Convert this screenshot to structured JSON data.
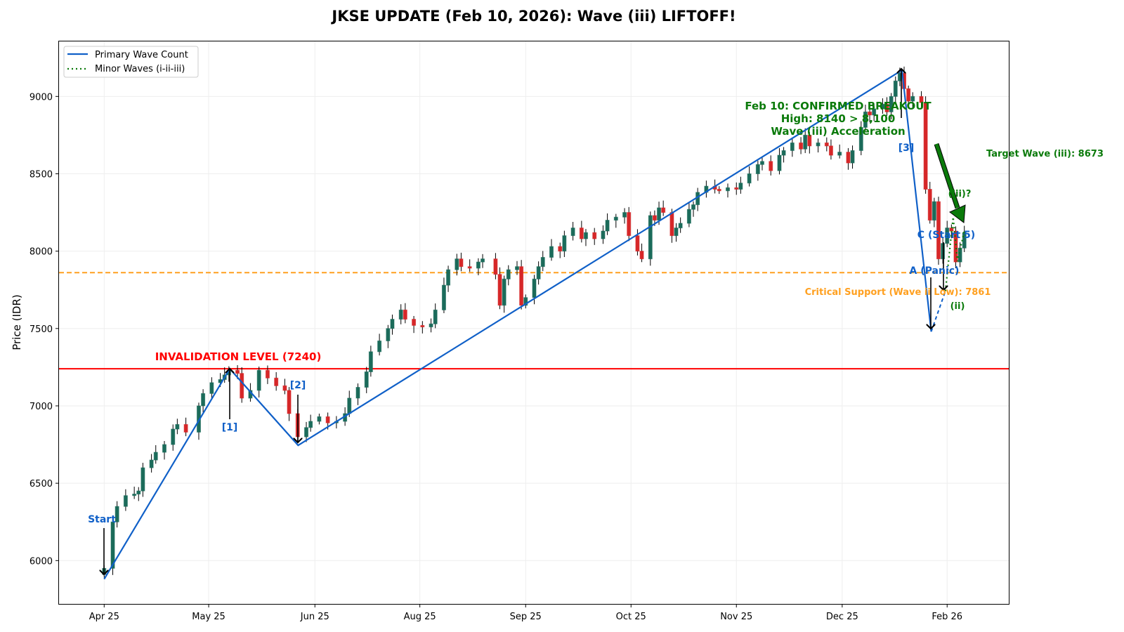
{
  "chart_data": {
    "type": "candlestick",
    "title": "JKSE UPDATE (Feb 10, 2026): Wave (iii) LIFTOFF!",
    "xlabel": "",
    "ylabel": "Price (IDR)",
    "ylim": [
      5720,
      9360
    ],
    "xlim": [
      -10.5,
      210.5
    ],
    "x_unit": "trading day index",
    "grid": true,
    "legend_placement": "top-left",
    "yticks": [
      6000,
      6500,
      7000,
      7500,
      8000,
      8500,
      9000
    ],
    "ytick_labels": [
      "6000",
      "6500",
      "7000",
      "7500",
      "8000",
      "8500",
      "9000"
    ],
    "xticks": [
      0,
      24.3,
      49,
      73.4,
      98,
      122.5,
      147,
      171.6,
      196
    ],
    "xtick_labels": [
      "Apr 25",
      "May 25",
      "Jun 25",
      "Aug 25",
      "Sep 25",
      "Oct 25",
      "Nov 25",
      "Dec 25",
      "Feb 26"
    ],
    "candles_close": [
      [
        0,
        5950
      ],
      [
        2,
        6250
      ],
      [
        3,
        6350
      ],
      [
        5,
        6420
      ],
      [
        7,
        6430
      ],
      [
        8,
        6450
      ],
      [
        9,
        6600
      ],
      [
        11,
        6650
      ],
      [
        12,
        6700
      ],
      [
        14,
        6750
      ],
      [
        16,
        6850
      ],
      [
        17,
        6880
      ],
      [
        19,
        6830
      ],
      [
        22,
        7000
      ],
      [
        23,
        7080
      ],
      [
        25,
        7150
      ],
      [
        27,
        7170
      ],
      [
        28,
        7200
      ],
      [
        29,
        7230
      ],
      [
        31,
        7210
      ],
      [
        32,
        7050
      ],
      [
        34,
        7100
      ],
      [
        36,
        7230
      ],
      [
        38,
        7180
      ],
      [
        40,
        7130
      ],
      [
        42,
        7100
      ],
      [
        43,
        6950
      ],
      [
        45,
        6800
      ],
      [
        47,
        6860
      ],
      [
        48,
        6900
      ],
      [
        50,
        6930
      ],
      [
        52,
        6890
      ],
      [
        54,
        6900
      ],
      [
        56,
        6950
      ],
      [
        57,
        7050
      ],
      [
        59,
        7120
      ],
      [
        61,
        7220
      ],
      [
        62,
        7350
      ],
      [
        64,
        7420
      ],
      [
        66,
        7500
      ],
      [
        67,
        7560
      ],
      [
        69,
        7620
      ],
      [
        70,
        7560
      ],
      [
        72,
        7520
      ],
      [
        74,
        7510
      ],
      [
        76,
        7530
      ],
      [
        77,
        7620
      ],
      [
        79,
        7780
      ],
      [
        80,
        7880
      ],
      [
        82,
        7950
      ],
      [
        83,
        7900
      ],
      [
        85,
        7890
      ],
      [
        87,
        7930
      ],
      [
        88,
        7950
      ],
      [
        91,
        7850
      ],
      [
        92,
        7650
      ],
      [
        93,
        7820
      ],
      [
        94,
        7880
      ],
      [
        96,
        7900
      ],
      [
        97,
        7650
      ],
      [
        98,
        7700
      ],
      [
        100,
        7820
      ],
      [
        101,
        7900
      ],
      [
        102,
        7960
      ],
      [
        104,
        8030
      ],
      [
        106,
        8000
      ],
      [
        107,
        8100
      ],
      [
        109,
        8150
      ],
      [
        111,
        8080
      ],
      [
        112,
        8120
      ],
      [
        114,
        8080
      ],
      [
        116,
        8130
      ],
      [
        117,
        8200
      ],
      [
        119,
        8220
      ],
      [
        121,
        8250
      ],
      [
        122,
        8100
      ],
      [
        124,
        8000
      ],
      [
        125,
        7950
      ],
      [
        127,
        8230
      ],
      [
        128,
        8200
      ],
      [
        129,
        8280
      ],
      [
        130,
        8250
      ],
      [
        132,
        8100
      ],
      [
        133,
        8150
      ],
      [
        134,
        8180
      ],
      [
        136,
        8270
      ],
      [
        137,
        8300
      ],
      [
        138,
        8380
      ],
      [
        140,
        8420
      ],
      [
        142,
        8400
      ],
      [
        143,
        8390
      ],
      [
        145,
        8410
      ],
      [
        147,
        8400
      ],
      [
        148,
        8440
      ],
      [
        150,
        8500
      ],
      [
        152,
        8560
      ],
      [
        153,
        8580
      ],
      [
        155,
        8520
      ],
      [
        157,
        8620
      ],
      [
        158,
        8650
      ],
      [
        160,
        8700
      ],
      [
        162,
        8660
      ],
      [
        163,
        8750
      ],
      [
        164,
        8680
      ],
      [
        166,
        8700
      ],
      [
        168,
        8680
      ],
      [
        169,
        8620
      ],
      [
        171,
        8640
      ],
      [
        173,
        8570
      ],
      [
        174,
        8650
      ],
      [
        176,
        8800
      ],
      [
        177,
        8900
      ],
      [
        178,
        8880
      ],
      [
        179,
        8920
      ],
      [
        181,
        8950
      ],
      [
        182,
        8900
      ],
      [
        183,
        9000
      ],
      [
        184,
        9100
      ],
      [
        185,
        9150
      ],
      [
        186,
        9050
      ],
      [
        187,
        8970
      ],
      [
        188,
        9000
      ],
      [
        190,
        8960
      ],
      [
        191,
        8400
      ],
      [
        192,
        8200
      ],
      [
        193,
        8320
      ],
      [
        194,
        7950
      ],
      [
        195,
        8050
      ],
      [
        196,
        8150
      ],
      [
        197,
        8130
      ],
      [
        198,
        7930
      ],
      [
        199,
        8020
      ],
      [
        200,
        8120
      ]
    ],
    "primary_wave": {
      "name": "Primary Wave Count",
      "points": [
        [
          0,
          5880
        ],
        [
          29.2,
          7240
        ],
        [
          45.1,
          6745
        ],
        [
          185.5,
          9170
        ],
        [
          192.3,
          7480
        ]
      ],
      "projection": [
        [
          192.3,
          7480
        ],
        [
          195.6,
          7742
        ]
      ],
      "color": "#1060c8"
    },
    "minor_waves": {
      "name": "Minor Waves (i-ii-iii)",
      "points": [
        [
          195.6,
          7742
        ],
        [
          197.4,
          8220
        ],
        [
          198.4,
          7935
        ],
        [
          200,
          8130
        ]
      ],
      "color": "#0a7a0a"
    },
    "levels": [
      {
        "label": "INVALIDATION LEVEL (7240)",
        "value": 7240,
        "color": "#ff0000",
        "style": "solid"
      },
      {
        "label": "Critical Support (Wave ii Low): 7861",
        "value": 7861,
        "color": "#ffa020",
        "style": "dashed"
      }
    ],
    "annotations": {
      "start": "Start",
      "w1": "[1]",
      "w2": "[2]",
      "w3": "[3]",
      "a": "A (Panic)",
      "c": "C (Start 5)",
      "iii": "(iii)?",
      "ii": "(ii)",
      "breakout_1": "Feb 10: CONFIRMED BREAKOUT",
      "breakout_2": "High: 8140 > 8,100",
      "breakout_3": "Wave (iii) Acceleration",
      "target": "Target Wave (iii): 8673"
    },
    "colors": {
      "up": "#1b6b5a",
      "down": "#d62728"
    }
  }
}
